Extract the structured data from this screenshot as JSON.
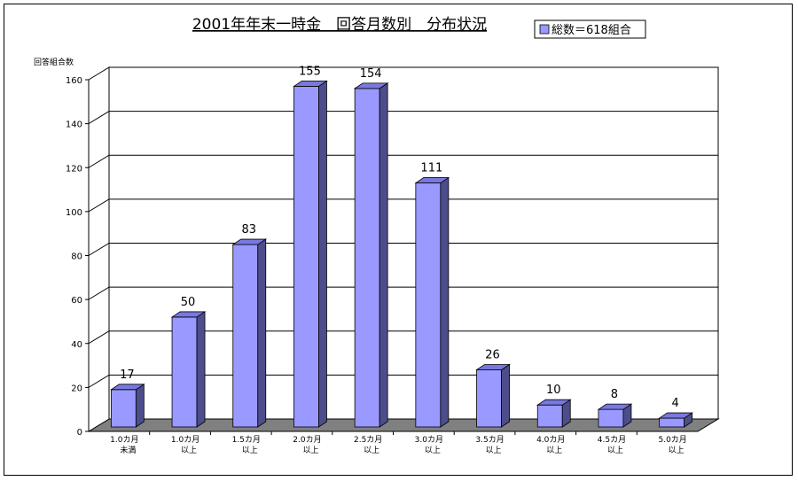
{
  "chart_data": {
    "type": "bar",
    "title": "2001年年末一時金　回答月数別　分布状況",
    "ylabel": "回答組合数",
    "xlabel": "",
    "legend": "総数＝618組合",
    "legend_position": "top-right",
    "ylim": [
      0,
      160
    ],
    "yticks": [
      0,
      20,
      40,
      60,
      80,
      100,
      120,
      140,
      160
    ],
    "grid": true,
    "categories": [
      [
        "1.0カ月",
        "未満"
      ],
      [
        "1.0カ月",
        "以上"
      ],
      [
        "1.5カ月",
        "以上"
      ],
      [
        "2.0カ月",
        "以上"
      ],
      [
        "2.5カ月",
        "以上"
      ],
      [
        "3.0カ月",
        "以上"
      ],
      [
        "3.5カ月",
        "以上"
      ],
      [
        "4.0カ月",
        "以上"
      ],
      [
        "4.5カ月",
        "以上"
      ],
      [
        "5.0カ月",
        "以上"
      ]
    ],
    "values": [
      17,
      50,
      83,
      155,
      154,
      111,
      26,
      10,
      8,
      4
    ],
    "colors": {
      "bar_front": "#9999ff",
      "bar_top": "#7878e0",
      "bar_side": "#4d4d8c",
      "floor": "#808080",
      "grid": "#000000"
    }
  }
}
